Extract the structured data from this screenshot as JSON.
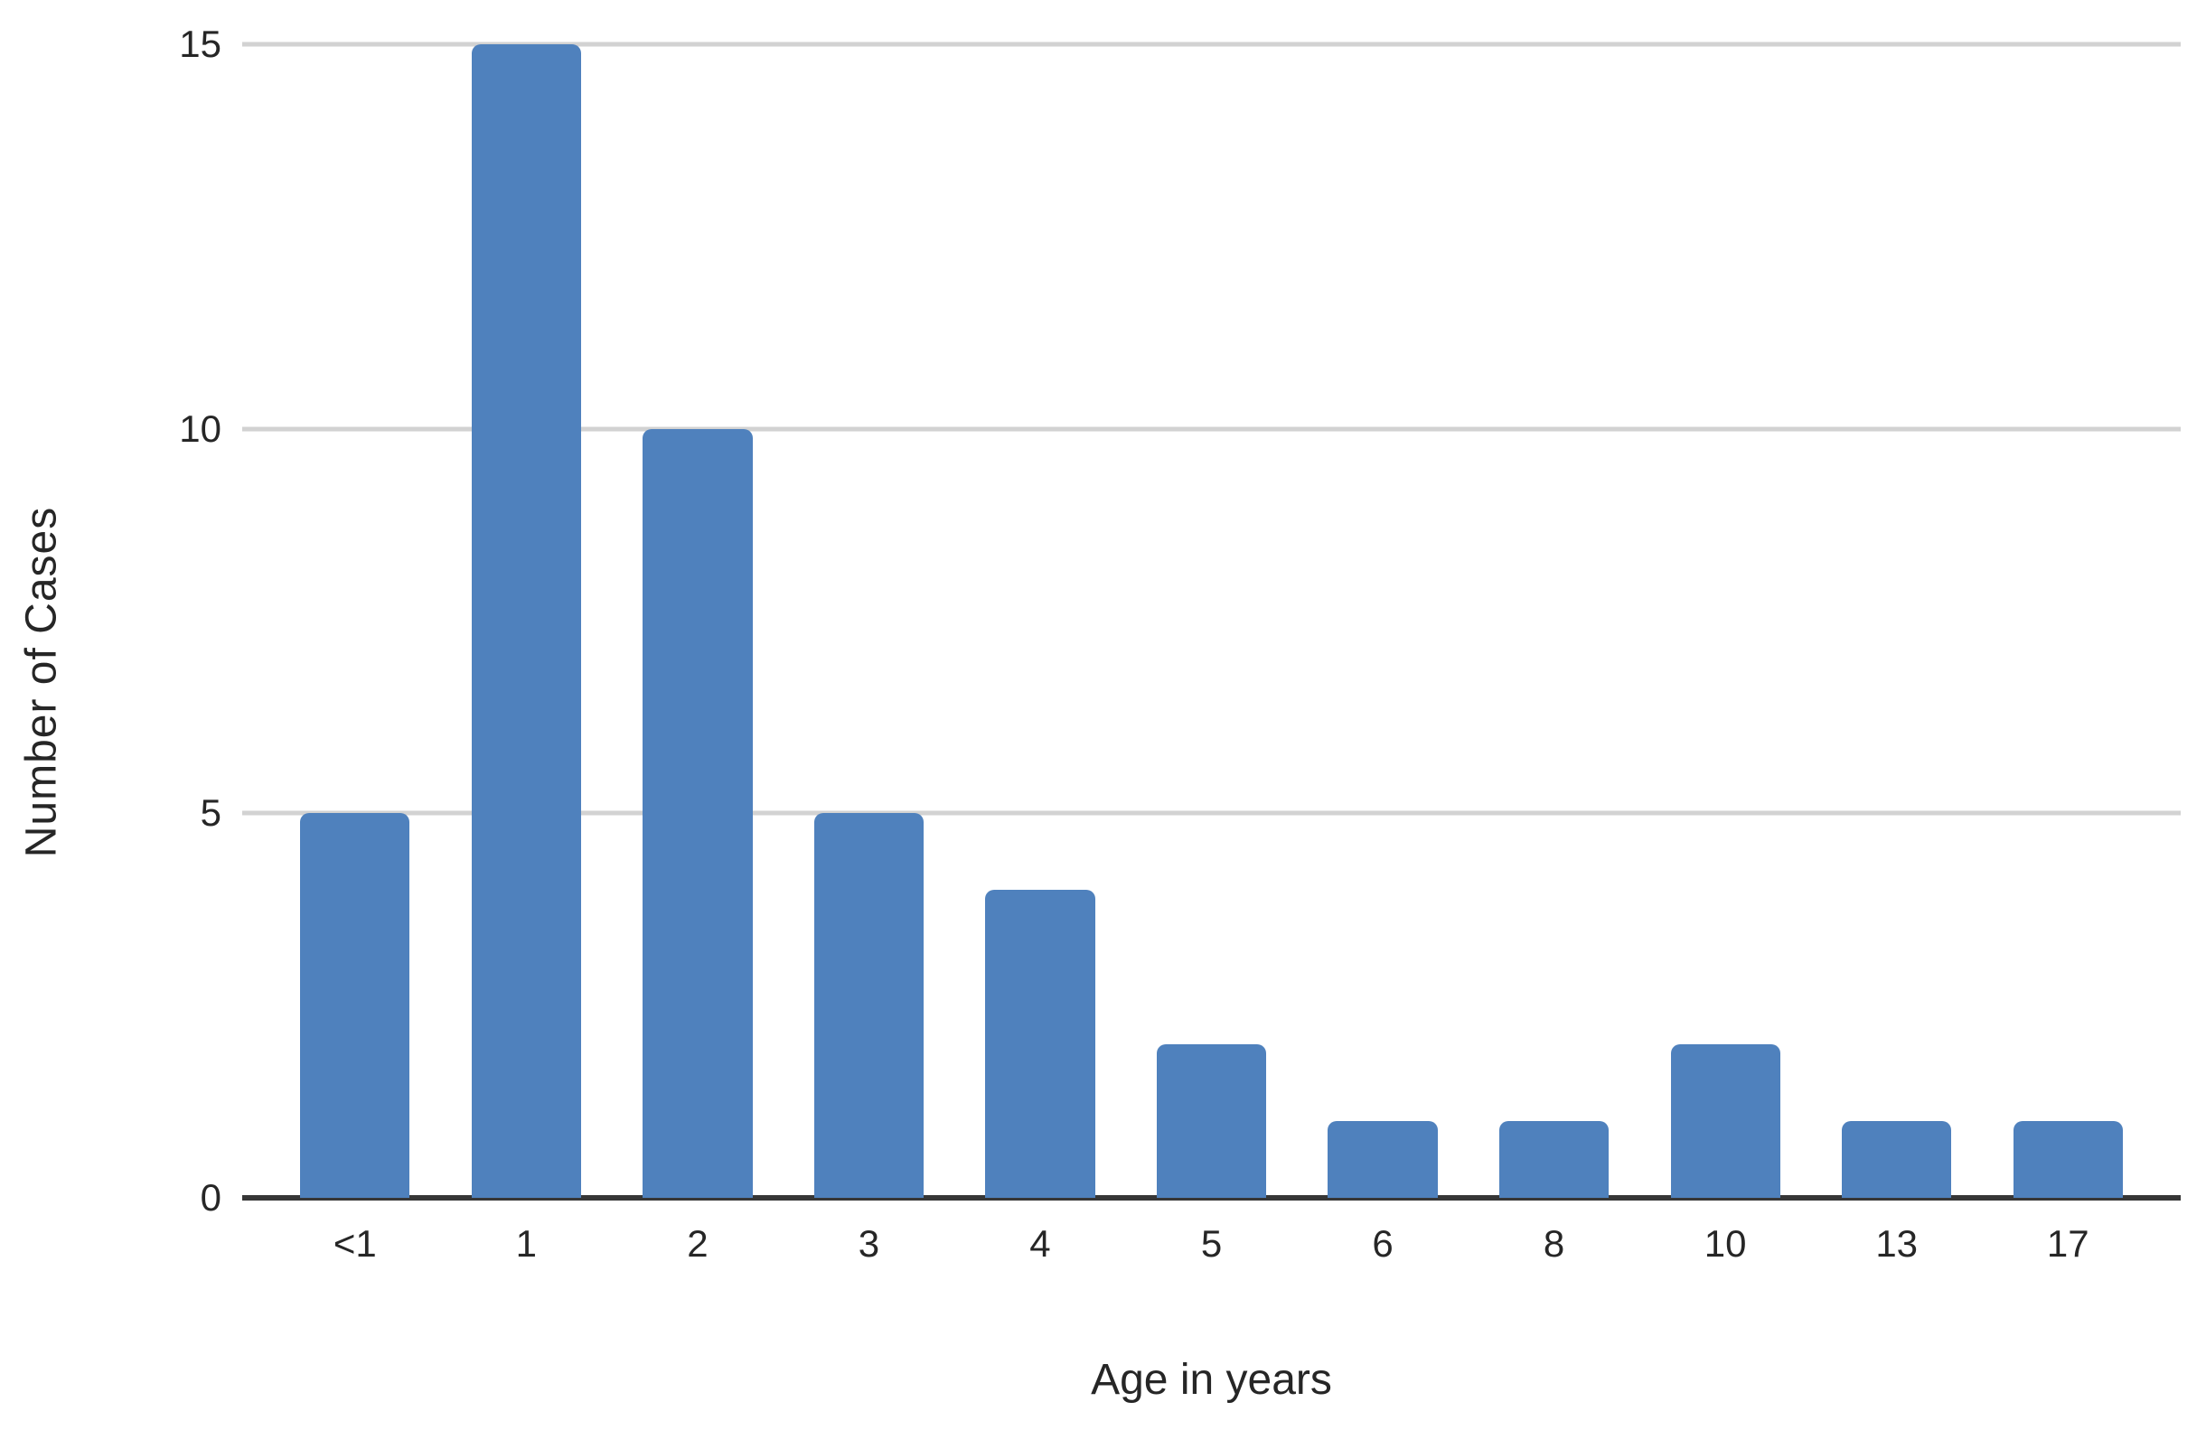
{
  "chart_data": {
    "type": "bar",
    "title": "",
    "categories": [
      "<1",
      "1",
      "2",
      "3",
      "4",
      "5",
      "6",
      "8",
      "10",
      "13",
      "17"
    ],
    "values": [
      5,
      15,
      10,
      5,
      4,
      2,
      1,
      1,
      2,
      1,
      1
    ],
    "xlabel": "Age in years",
    "ylabel": "Number of Cases",
    "ylim": [
      0,
      15
    ],
    "yticks": [
      0,
      5,
      10,
      15
    ],
    "grid": "horizontal-gridlines-on",
    "legend": "none",
    "colors": {
      "bar": "#4F81BD",
      "gridline": "#D2D2D2",
      "axis_line": "#363636",
      "text": "#262626",
      "background": "#FFFFFF"
    }
  }
}
